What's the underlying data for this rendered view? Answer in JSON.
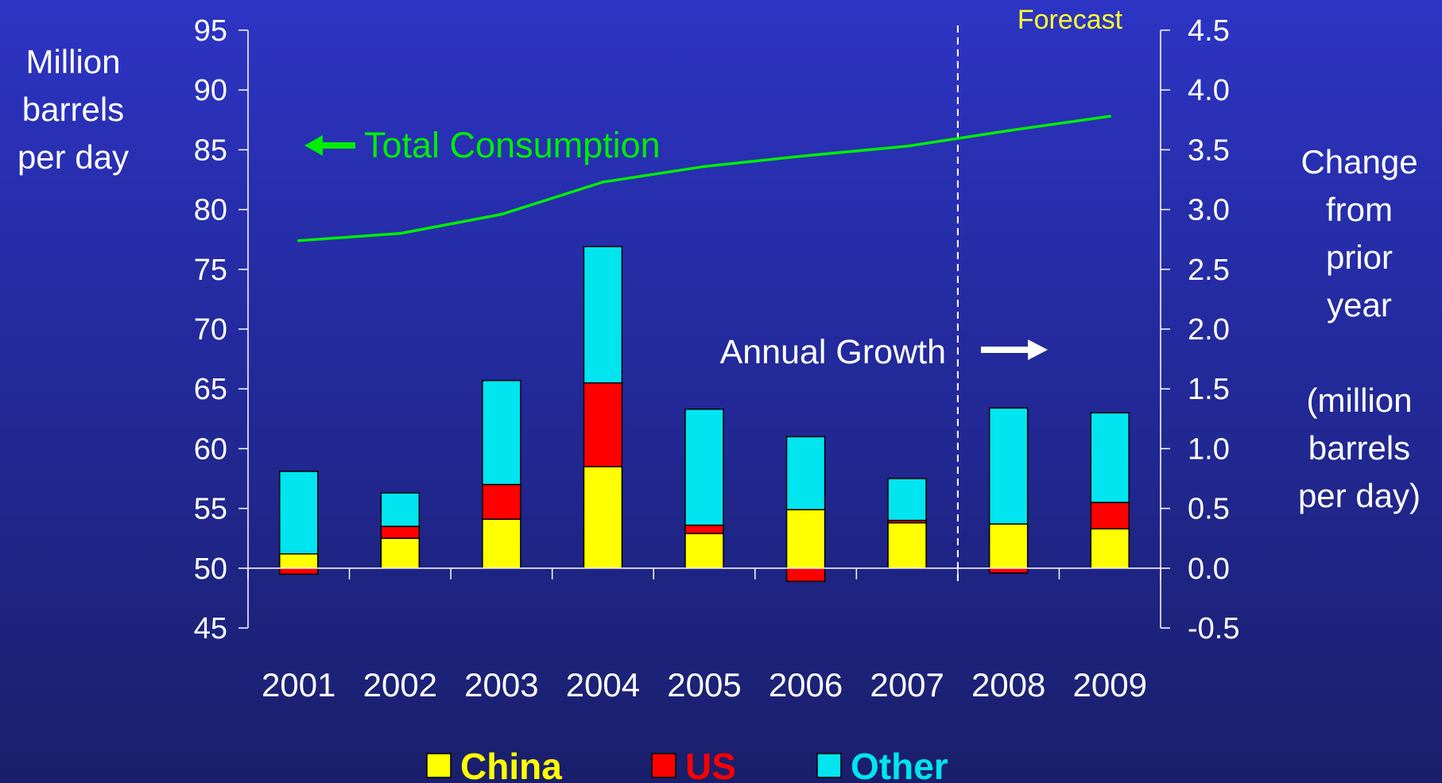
{
  "chart_data": {
    "type": "bar",
    "subtype": "stacked-bar-with-line",
    "categories": [
      "2001",
      "2002",
      "2003",
      "2004",
      "2005",
      "2006",
      "2007",
      "2008",
      "2009"
    ],
    "left_axis": {
      "label_lines": [
        "Million",
        "barrels",
        "per day"
      ],
      "ylim": [
        45,
        95
      ],
      "ticks": [
        45,
        50,
        55,
        60,
        65,
        70,
        75,
        80,
        85,
        90,
        95
      ]
    },
    "right_axis": {
      "label_lines": [
        "Change",
        "from",
        "prior",
        "year",
        "",
        "(million",
        "barrels",
        "per day)"
      ],
      "ylim": [
        -0.5,
        4.5
      ],
      "ticks": [
        "-0.5",
        "0.0",
        "0.5",
        "1.0",
        "1.5",
        "2.0",
        "2.5",
        "3.0",
        "3.5",
        "4.0",
        "4.5"
      ]
    },
    "series": [
      {
        "name": "China",
        "axis": "right",
        "color": "#ffff00",
        "values": [
          0.12,
          0.25,
          0.41,
          0.85,
          0.29,
          0.49,
          0.38,
          0.37,
          0.33
        ]
      },
      {
        "name": "US",
        "axis": "right",
        "color": "#ff0000",
        "values": [
          -0.05,
          0.1,
          0.29,
          0.7,
          0.07,
          -0.11,
          0.02,
          -0.04,
          0.22
        ]
      },
      {
        "name": "Other",
        "axis": "right",
        "color": "#00e5f0",
        "values": [
          0.69,
          0.28,
          0.87,
          1.14,
          0.97,
          0.61,
          0.35,
          0.97,
          0.75
        ]
      },
      {
        "name": "Total Consumption",
        "axis": "left",
        "type": "line",
        "color": "#00ee00",
        "values": [
          77.4,
          78.0,
          79.6,
          82.3,
          83.6,
          84.5,
          85.3,
          86.6,
          87.8
        ]
      }
    ],
    "annotations": {
      "total_consumption": "Total Consumption",
      "annual_growth": "Annual Growth",
      "forecast": "Forecast",
      "forecast_starts_after": "2007"
    },
    "legend": {
      "placement": "bottom",
      "entries": [
        {
          "label": "China",
          "color": "#ffff00"
        },
        {
          "label": "US",
          "color": "#ff0000"
        },
        {
          "label": "Other",
          "color": "#00e5f0"
        }
      ]
    }
  }
}
